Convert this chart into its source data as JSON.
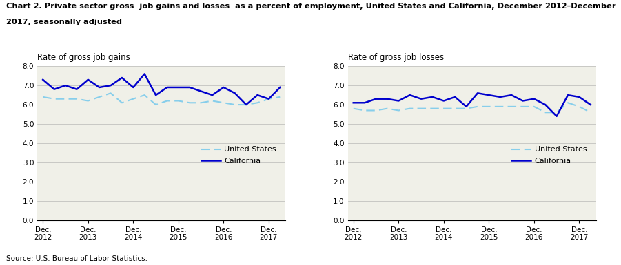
{
  "title_line1": "Chart 2. Private sector gross  job gains and losses  as a percent of employment, United States and California, December 2012–December",
  "title_line2": "2017, seasonally adjusted",
  "left_ylabel": "Rate of gross job gains",
  "right_ylabel": "Rate of gross job losses",
  "source": "Source: U.S. Bureau of Labor Statistics.",
  "xtick_labels": [
    "Dec.\n2012",
    "Dec.\n2013",
    "Dec.\n2014",
    "Dec.\n2015",
    "Dec.\n2016",
    "Dec.\n2017"
  ],
  "ylim": [
    0.0,
    8.0
  ],
  "yticks": [
    0.0,
    1.0,
    2.0,
    3.0,
    4.0,
    5.0,
    6.0,
    7.0,
    8.0
  ],
  "gains_ca": [
    7.3,
    6.8,
    7.0,
    6.8,
    7.3,
    6.9,
    7.0,
    7.4,
    6.9,
    7.6,
    6.5,
    6.9,
    6.9,
    6.9,
    6.7,
    6.5,
    6.9,
    6.6,
    6.0,
    6.5,
    6.3,
    6.9
  ],
  "gains_us": [
    6.4,
    6.3,
    6.3,
    6.3,
    6.2,
    6.4,
    6.6,
    6.1,
    6.3,
    6.5,
    6.0,
    6.2,
    6.2,
    6.1,
    6.1,
    6.2,
    6.1,
    6.0,
    6.0,
    6.1,
    6.3,
    6.4
  ],
  "losses_ca": [
    6.1,
    6.1,
    6.3,
    6.3,
    6.2,
    6.5,
    6.3,
    6.4,
    6.2,
    6.4,
    5.9,
    6.6,
    6.5,
    6.4,
    6.5,
    6.2,
    6.3,
    6.0,
    5.4,
    6.5,
    6.4,
    6.0
  ],
  "losses_us": [
    5.8,
    5.7,
    5.7,
    5.8,
    5.7,
    5.8,
    5.8,
    5.8,
    5.8,
    5.8,
    5.8,
    5.9,
    5.9,
    5.9,
    5.9,
    5.9,
    5.9,
    5.6,
    5.6,
    6.1,
    5.9,
    5.6
  ],
  "ca_color": "#0000CD",
  "us_color": "#87CEEB",
  "n_points": 22,
  "x_ticks_positions": [
    0,
    4,
    8,
    12,
    16,
    20
  ],
  "legend_us": "United States",
  "legend_ca": "California",
  "plot_bg_color": "#f0f0e8"
}
